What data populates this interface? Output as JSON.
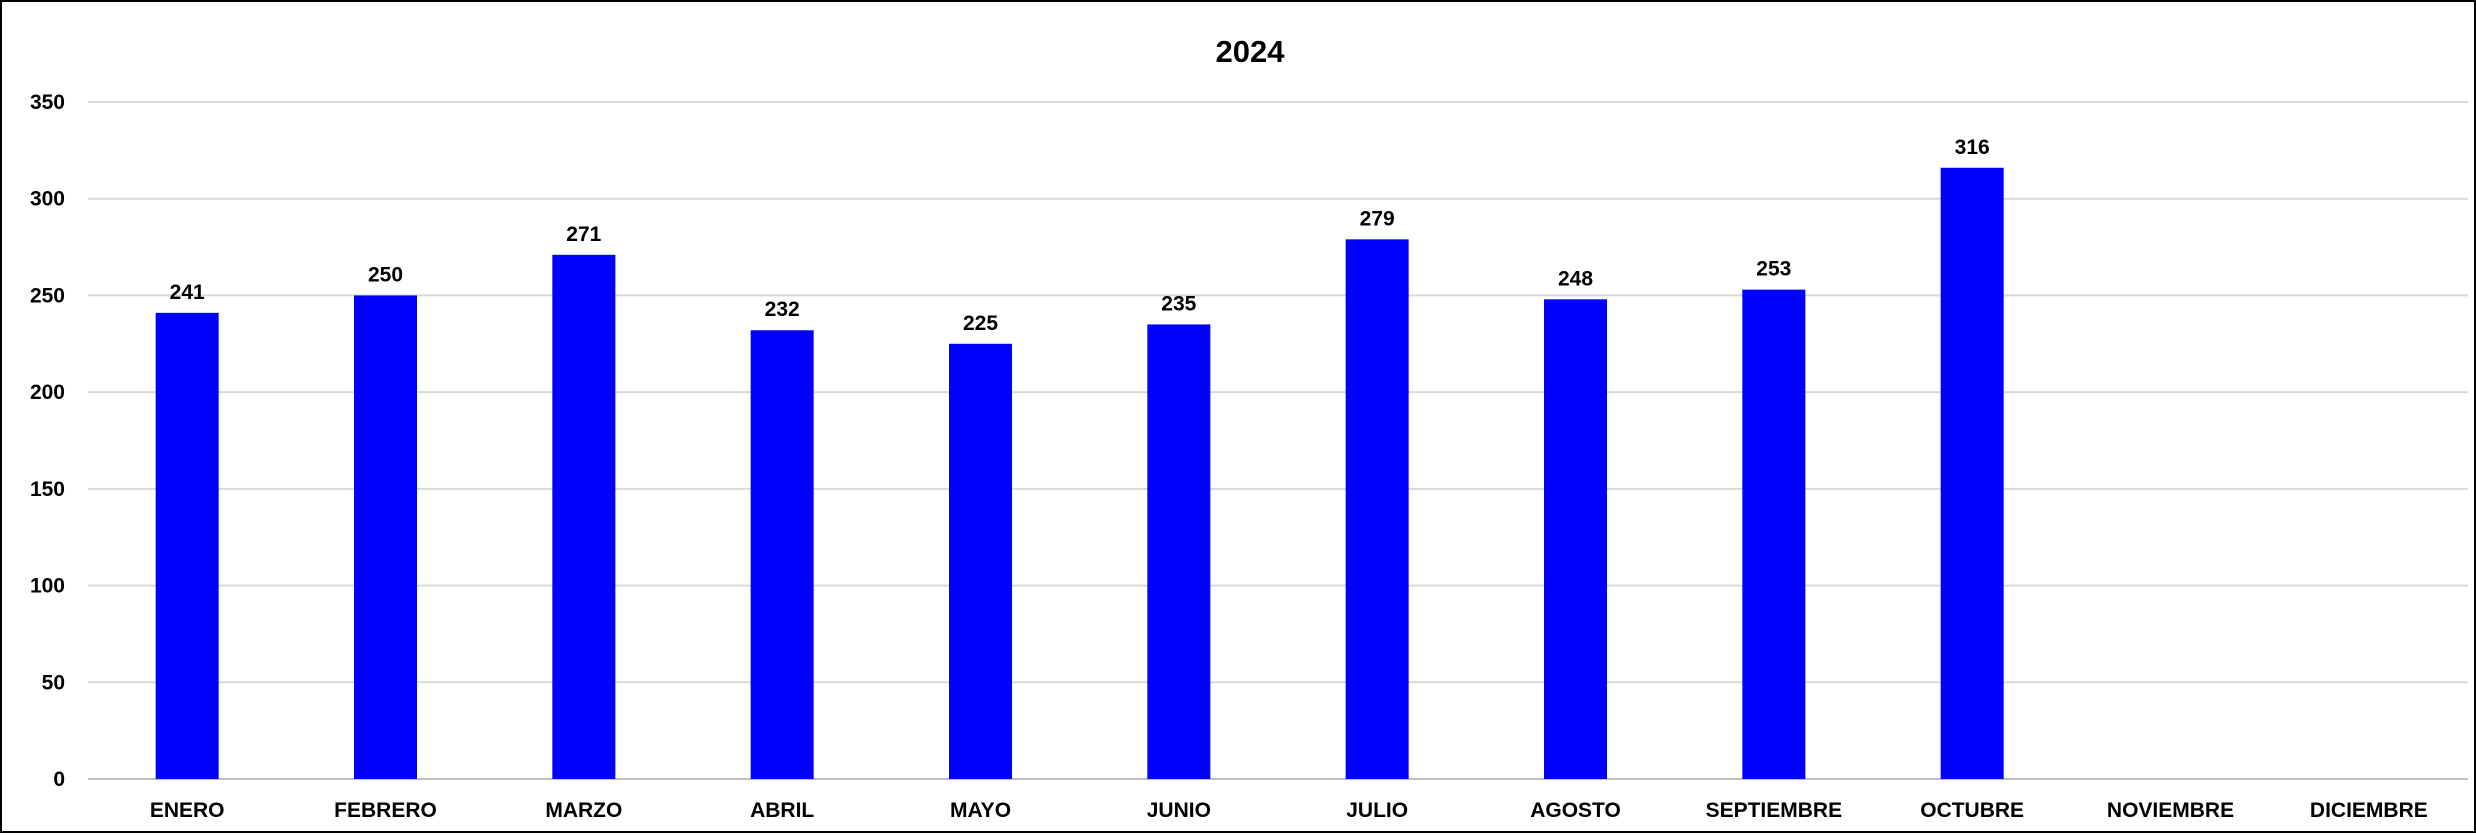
{
  "chart_data": {
    "type": "bar",
    "title": "2024",
    "xlabel": "",
    "ylabel": "",
    "categories": [
      "ENERO",
      "FEBRERO",
      "MARZO",
      "ABRIL",
      "MAYO",
      "JUNIO",
      "JULIO",
      "AGOSTO",
      "SEPTIEMBRE",
      "OCTUBRE",
      "NOVIEMBRE",
      "DICIEMBRE"
    ],
    "values": [
      241,
      250,
      271,
      232,
      225,
      235,
      279,
      248,
      253,
      316,
      null,
      null
    ],
    "ylim": [
      0,
      350
    ],
    "yticks": [
      0,
      50,
      100,
      150,
      200,
      250,
      300,
      350
    ],
    "grid": true,
    "legend": "none",
    "bar_color": "#0000FF",
    "data_labels": true
  }
}
